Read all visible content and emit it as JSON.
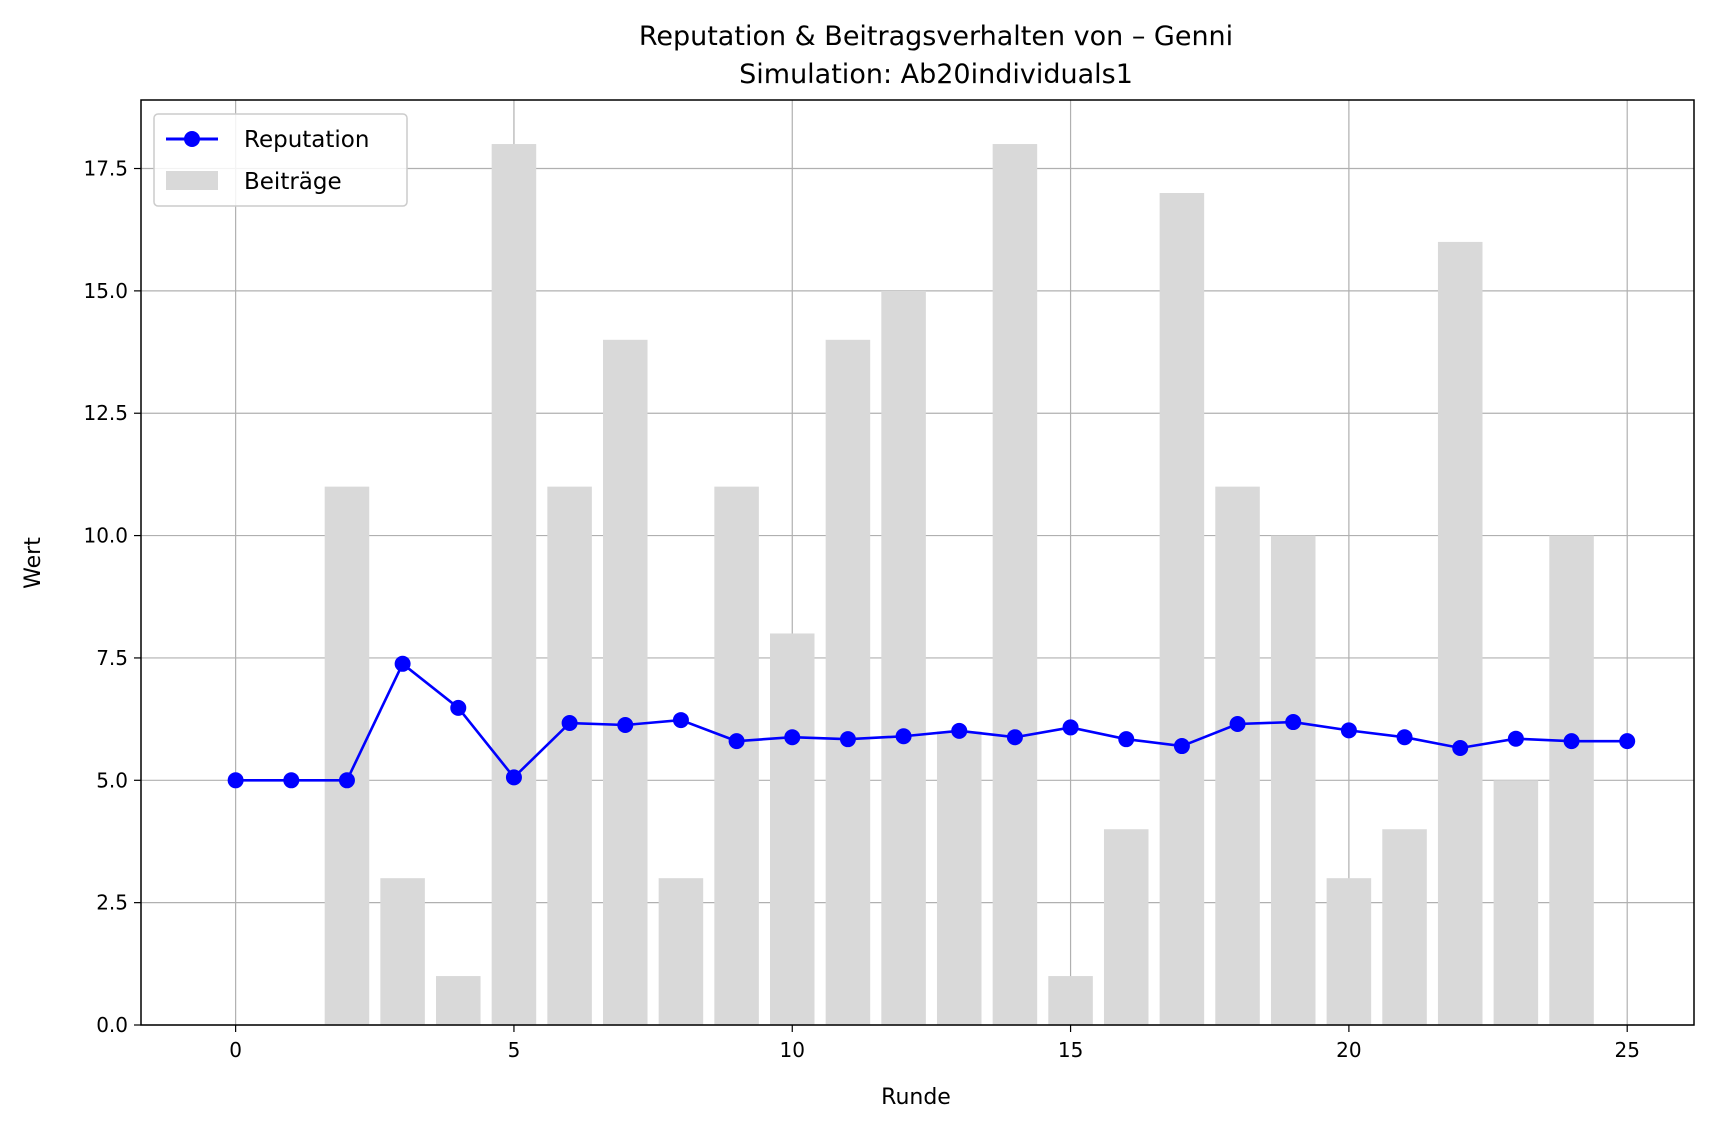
{
  "chart_data": {
    "type": "bar",
    "title": "Reputation & Beitragsverhalten von – Genni",
    "subtitle": "Simulation: Ab20individuals1",
    "xlabel": "Runde",
    "ylabel": "Wert",
    "xlim": [
      -1.7,
      26.2
    ],
    "ylim": [
      0,
      18.9
    ],
    "xticks": [
      0,
      5,
      10,
      15,
      20,
      25
    ],
    "yticks": [
      0.0,
      2.5,
      5.0,
      7.5,
      10.0,
      12.5,
      15.0,
      17.5
    ],
    "grid": true,
    "legend_position": "top-left",
    "x": [
      0,
      1,
      2,
      3,
      4,
      5,
      6,
      7,
      8,
      9,
      10,
      11,
      12,
      13,
      14,
      15,
      16,
      17,
      18,
      19,
      20,
      21,
      22,
      23,
      24,
      25
    ],
    "series": [
      {
        "name": "Beiträge",
        "kind": "bar",
        "color": "#d9d9d9",
        "values": [
          0,
          0,
          11,
          3,
          1,
          18,
          11,
          14,
          3,
          11,
          8,
          14,
          15,
          6,
          18,
          1,
          4,
          17,
          11,
          10,
          3,
          4,
          16,
          5,
          10,
          0
        ]
      },
      {
        "name": "Reputation",
        "kind": "line",
        "marker": "circle",
        "color": "#0000ff",
        "values": [
          5.0,
          5.0,
          5.0,
          7.38,
          6.48,
          5.06,
          6.17,
          6.13,
          6.23,
          5.8,
          5.88,
          5.84,
          5.9,
          6.01,
          5.88,
          6.08,
          5.84,
          5.7,
          6.15,
          6.19,
          6.02,
          5.88,
          5.66,
          5.85,
          5.8,
          5.8
        ]
      }
    ]
  }
}
